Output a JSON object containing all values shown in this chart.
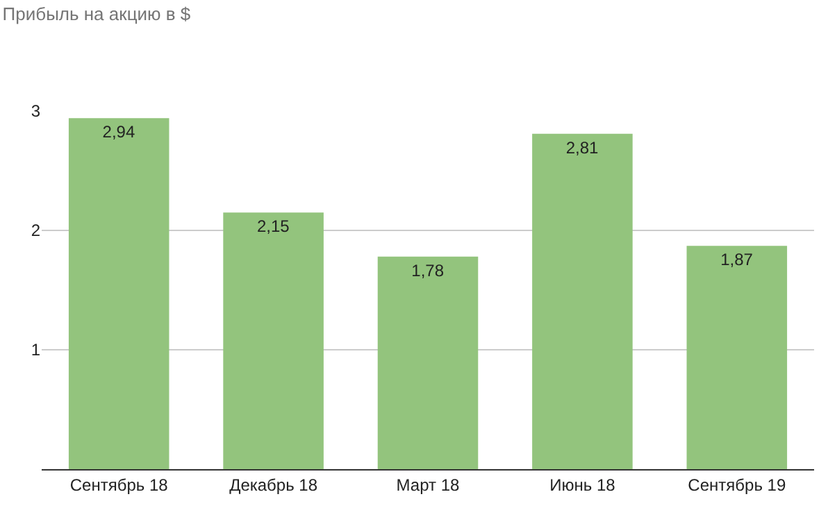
{
  "chart_data": {
    "type": "bar",
    "title": "Прибыль на акцию в $",
    "categories": [
      "Сентябрь 18",
      "Декабрь 18",
      "Март 18",
      "Июнь 18",
      "Сентябрь 19"
    ],
    "values": [
      2.94,
      2.15,
      1.78,
      2.81,
      1.87
    ],
    "value_labels": [
      "2,94",
      "2,15",
      "1,78",
      "2,81",
      "1,87"
    ],
    "color": "#93c47d",
    "ylim": [
      0,
      3
    ],
    "yticks": [
      1,
      2,
      3
    ],
    "grid": "y",
    "legend": false
  }
}
